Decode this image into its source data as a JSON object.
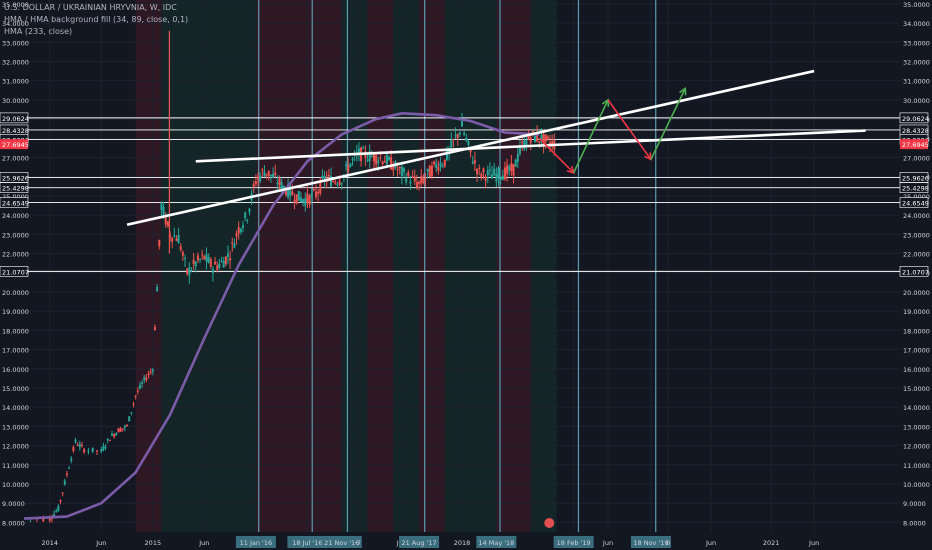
{
  "legend": {
    "symbol": "U.S. DOLLAR / UKRAINIAN HRYVNIA, W, IDC",
    "hma_fill": "HMA / HMA background fill (34, 89, close, 0,1)",
    "hma": "HMA (233, close)"
  },
  "chart_data": {
    "type": "candlestick",
    "title": "U.S. DOLLAR / UKRAINIAN HRYVNIA, W, IDC",
    "ylim": [
      7.5,
      35.2
    ],
    "y_ticks": [
      8,
      9,
      10,
      11,
      12,
      13,
      14,
      15,
      16,
      17,
      18,
      19,
      20,
      21,
      22,
      23,
      24,
      25,
      26,
      27,
      28,
      29,
      30,
      31,
      32,
      33,
      34,
      35
    ],
    "y_tick_labels": [
      "8.0000",
      "9.0000",
      "10.0000",
      "11.0000",
      "12.0000",
      "13.0000",
      "14.0000",
      "15.0000",
      "16.0000",
      "17.0000",
      "18.0000",
      "19.0000",
      "20.0000",
      "21.0000",
      "22.0000",
      "23.0000",
      "24.0000",
      "25.0000",
      "26.0000",
      "27.0000",
      "28.0000",
      "29.0000",
      "30.0000",
      "31.0000",
      "32.0000",
      "33.0000",
      "34.0000",
      "35.0000"
    ],
    "x_range": [
      "2013-10",
      "2022-04"
    ],
    "x_ticks": [
      {
        "date": "2014-01",
        "label": "2014"
      },
      {
        "date": "2014-07",
        "label": "Jun"
      },
      {
        "date": "2015-01",
        "label": "2015"
      },
      {
        "date": "2015-07",
        "label": "Jun"
      },
      {
        "date": "2016-01",
        "label": "11 Jan '16",
        "highlight": true
      },
      {
        "date": "2016-07",
        "label": "18 Jul '16",
        "highlight": true
      },
      {
        "date": "2016-11",
        "label": "21 Nov '16",
        "highlight": true
      },
      {
        "date": "2017-01",
        "label": "7"
      },
      {
        "date": "2017-06",
        "label": "Jun"
      },
      {
        "date": "2017-08",
        "label": "21 Aug '17",
        "highlight": true
      },
      {
        "date": "2018-01",
        "label": "2018"
      },
      {
        "date": "2018-05",
        "label": "14 May '18",
        "highlight": true
      },
      {
        "date": "2019-02",
        "label": "18 Feb '19",
        "highlight": true
      },
      {
        "date": "2019-06",
        "label": "Jun"
      },
      {
        "date": "2019-11",
        "label": "18 Nov '19",
        "highlight": true
      },
      {
        "date": "2020-01",
        "label": "0"
      },
      {
        "date": "2020-06",
        "label": "Jun"
      },
      {
        "date": "2021-01",
        "label": "2021"
      },
      {
        "date": "2021-06",
        "label": "Jun"
      }
    ],
    "horizontal_levels": [
      29.0624,
      28.4328,
      27.9396,
      25.9626,
      25.4298,
      24.6549,
      21.0707
    ],
    "horizontal_level_labels": [
      "29.0624",
      "28.4328",
      "27.9396",
      "25.9626",
      "25.4298",
      "24.6549",
      "21.0707"
    ],
    "last_price": 27.6945,
    "last_price_label": "27.6945",
    "vertical_markers": [
      "2016-01-11",
      "2016-07-18",
      "2016-11-21",
      "2017-08-21",
      "2018-05-14",
      "2019-02-18",
      "2019-11-18"
    ],
    "channel_lines": [
      {
        "from": [
          "2014-10",
          23.5
        ],
        "to": [
          "2021-06",
          31.5
        ]
      },
      {
        "from": [
          "2015-06",
          26.8
        ],
        "to": [
          "2021-12",
          28.4
        ]
      }
    ],
    "projection": [
      {
        "from": [
          "2018-10",
          28.0
        ],
        "to": [
          "2019-02",
          26.2
        ],
        "color": "#f23645"
      },
      {
        "from": [
          "2019-02",
          26.2
        ],
        "to": [
          "2019-06",
          30.0
        ],
        "color": "#4caf50"
      },
      {
        "from": [
          "2019-06",
          30.0
        ],
        "to": [
          "2019-11",
          26.9
        ],
        "color": "#f23645"
      },
      {
        "from": [
          "2019-11",
          26.9
        ],
        "to": [
          "2020-03",
          30.6
        ],
        "color": "#4caf50"
      }
    ],
    "hma_line": [
      [
        "2013-10",
        8.2
      ],
      [
        "2014-03",
        8.3
      ],
      [
        "2014-07",
        9.0
      ],
      [
        "2014-11",
        10.6
      ],
      [
        "2015-03",
        13.6
      ],
      [
        "2015-07",
        17.6
      ],
      [
        "2015-11",
        21.4
      ],
      [
        "2016-03",
        24.5
      ],
      [
        "2016-07",
        26.8
      ],
      [
        "2016-11",
        28.2
      ],
      [
        "2017-03",
        29.0
      ],
      [
        "2017-06",
        29.3
      ],
      [
        "2017-10",
        29.2
      ],
      [
        "2018-02",
        28.9
      ],
      [
        "2018-06",
        28.3
      ],
      [
        "2018-10",
        28.2
      ]
    ],
    "price_path": [
      [
        "2013-10",
        8.2
      ],
      [
        "2014-01",
        8.2
      ],
      [
        "2014-02",
        8.7
      ],
      [
        "2014-03",
        10.5
      ],
      [
        "2014-04",
        12.2
      ],
      [
        "2014-05",
        11.8
      ],
      [
        "2014-07",
        11.7
      ],
      [
        "2014-08",
        12.4
      ],
      [
        "2014-09",
        12.8
      ],
      [
        "2014-10",
        13.0
      ],
      [
        "2014-11",
        14.6
      ],
      [
        "2014-12",
        15.4
      ],
      [
        "2015-01",
        16.0
      ],
      [
        "2015-02",
        24.5
      ],
      [
        "2015-03",
        23.0
      ],
      [
        "2015-04",
        22.8
      ],
      [
        "2015-05",
        21.0
      ],
      [
        "2015-06",
        21.5
      ],
      [
        "2015-07",
        21.8
      ],
      [
        "2015-08",
        21.3
      ],
      [
        "2015-09",
        21.5
      ],
      [
        "2015-10",
        22.0
      ],
      [
        "2015-11",
        23.3
      ],
      [
        "2015-12",
        24.0
      ],
      [
        "2016-01",
        25.8
      ],
      [
        "2016-02",
        26.3
      ],
      [
        "2016-03",
        26.0
      ],
      [
        "2016-04",
        25.5
      ],
      [
        "2016-05",
        25.2
      ],
      [
        "2016-06",
        24.9
      ],
      [
        "2016-07",
        24.8
      ],
      [
        "2016-08",
        25.1
      ],
      [
        "2016-09",
        25.9
      ],
      [
        "2016-10",
        25.8
      ],
      [
        "2016-11",
        25.9
      ],
      [
        "2016-12",
        26.7
      ],
      [
        "2017-01",
        27.2
      ],
      [
        "2017-02",
        27.1
      ],
      [
        "2017-03",
        27.0
      ],
      [
        "2017-04",
        26.9
      ],
      [
        "2017-05",
        26.6
      ],
      [
        "2017-06",
        26.2
      ],
      [
        "2017-07",
        25.9
      ],
      [
        "2017-08",
        25.6
      ],
      [
        "2017-09",
        26.1
      ],
      [
        "2017-10",
        26.6
      ],
      [
        "2017-11",
        26.8
      ],
      [
        "2017-12",
        27.8
      ],
      [
        "2018-01",
        28.6
      ],
      [
        "2018-02",
        27.2
      ],
      [
        "2018-03",
        26.2
      ],
      [
        "2018-04",
        26.1
      ],
      [
        "2018-05",
        26.1
      ],
      [
        "2018-06",
        26.2
      ],
      [
        "2018-07",
        26.4
      ],
      [
        "2018-08",
        27.6
      ],
      [
        "2018-09",
        28.1
      ],
      [
        "2018-10",
        28.0
      ],
      [
        "2018-11",
        27.8
      ],
      [
        "2018-12",
        27.7
      ]
    ],
    "spike": {
      "date": "2015-02",
      "high": 33.6
    },
    "shaded_zones": [
      {
        "from": "2014-11",
        "to": "2015-02",
        "tone": "red"
      },
      {
        "from": "2015-02",
        "to": "2015-07",
        "tone": "green"
      },
      {
        "from": "2015-07",
        "to": "2016-01",
        "tone": "green"
      },
      {
        "from": "2016-01",
        "to": "2016-04",
        "tone": "red"
      },
      {
        "from": "2016-04",
        "to": "2016-07",
        "tone": "red"
      },
      {
        "from": "2016-07",
        "to": "2016-11",
        "tone": "red"
      },
      {
        "from": "2016-11",
        "to": "2017-02",
        "tone": "green"
      },
      {
        "from": "2017-02",
        "to": "2017-05",
        "tone": "red"
      },
      {
        "from": "2017-05",
        "to": "2017-08",
        "tone": "green"
      },
      {
        "from": "2017-08",
        "to": "2017-11",
        "tone": "red"
      },
      {
        "from": "2017-11",
        "to": "2018-05",
        "tone": "green"
      },
      {
        "from": "2018-05",
        "to": "2018-09",
        "tone": "red"
      },
      {
        "from": "2018-09",
        "to": "2018-12",
        "tone": "green"
      }
    ],
    "colors": {
      "up": "#26a69a",
      "down": "#ef5350",
      "hma": "#7b5ca8",
      "levels": "#ffffff",
      "price_tag": "#f23645",
      "marker": "#5b9bb0",
      "axis_text": "#d1d4dc"
    }
  }
}
